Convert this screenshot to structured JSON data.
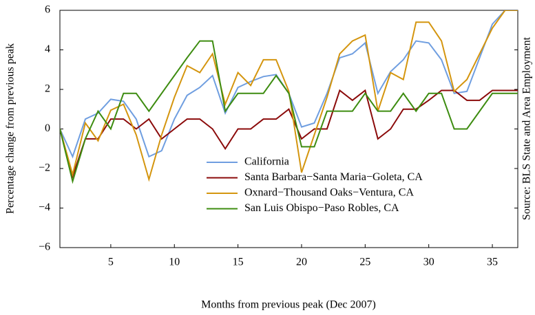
{
  "chart_data": {
    "type": "line",
    "xlabel": "Months from previous peak (Dec 2007)",
    "ylabel": "Percentage change from previous peak",
    "source": "Source: BLS State and Area Employment",
    "x": [
      1,
      2,
      3,
      4,
      5,
      6,
      7,
      8,
      9,
      10,
      11,
      12,
      13,
      14,
      15,
      16,
      17,
      18,
      19,
      20,
      21,
      22,
      23,
      24,
      25,
      26,
      27,
      28,
      29,
      30,
      31,
      32,
      33,
      34,
      35,
      36,
      37
    ],
    "xlim": [
      1,
      37
    ],
    "xticks": [
      5,
      10,
      15,
      20,
      25,
      30,
      35
    ],
    "ylim": [
      -6,
      6
    ],
    "yticks": [
      {
        "value": -6,
        "label": "−6"
      },
      {
        "value": -4,
        "label": "−4"
      },
      {
        "value": -2,
        "label": "−2"
      },
      0,
      2,
      4,
      6
    ],
    "legend": "center",
    "series": [
      {
        "name": "California",
        "color": "#6f9ee0",
        "values": [
          0,
          -1.4,
          0.5,
          0.8,
          1.5,
          1.4,
          0.5,
          -1.4,
          -1.1,
          0.5,
          1.7,
          2.1,
          2.7,
          0.8,
          2.1,
          2.4,
          2.65,
          2.75,
          1.8,
          0.1,
          0.3,
          1.8,
          3.6,
          3.8,
          4.35,
          1.8,
          2.9,
          3.5,
          4.45,
          4.35,
          3.5,
          1.8,
          1.9,
          3.6,
          5.3,
          6,
          6
        ]
      },
      {
        "name": "Santa Barbara−Santa Maria−Goleta, CA",
        "color": "#8b0a0a",
        "values": [
          0,
          -2.4,
          -0.5,
          -0.5,
          0.5,
          0.5,
          0,
          0.5,
          -0.5,
          0,
          0.5,
          0.5,
          0,
          -1,
          0,
          0,
          0.5,
          0.5,
          1,
          -0.5,
          0,
          0,
          1.95,
          1.45,
          1.95,
          -0.5,
          0,
          1,
          1,
          1.45,
          1.95,
          1.95,
          1.45,
          1.45,
          1.95,
          1.95,
          1.95
        ]
      },
      {
        "name": "Oxnard−Thousand Oaks−Ventura, CA",
        "color": "#d4950e",
        "values": [
          0,
          -2.3,
          0.3,
          -0.6,
          0.95,
          1.25,
          -0.3,
          -2.55,
          -0.3,
          1.6,
          3.2,
          2.85,
          3.8,
          1.25,
          2.85,
          2.2,
          3.5,
          3.5,
          1.9,
          -2.2,
          -0.3,
          1.6,
          3.8,
          4.45,
          4.75,
          0.9,
          2.85,
          2.5,
          5.4,
          5.4,
          4.45,
          1.9,
          2.5,
          3.8,
          5.1,
          6,
          6
        ]
      },
      {
        "name": "San Luis Obispo−Paso Robles, CA",
        "color": "#3d8c10",
        "values": [
          0,
          -2.65,
          -0.5,
          0.9,
          0,
          1.8,
          1.8,
          0.9,
          1.8,
          2.7,
          3.6,
          4.45,
          4.45,
          0.9,
          1.8,
          1.8,
          1.8,
          2.7,
          1.8,
          -0.9,
          -0.9,
          0.9,
          0.9,
          0.9,
          1.8,
          0.9,
          0.9,
          1.8,
          0.9,
          1.8,
          1.8,
          0,
          0,
          0.9,
          1.8,
          1.8,
          1.8
        ]
      }
    ]
  }
}
